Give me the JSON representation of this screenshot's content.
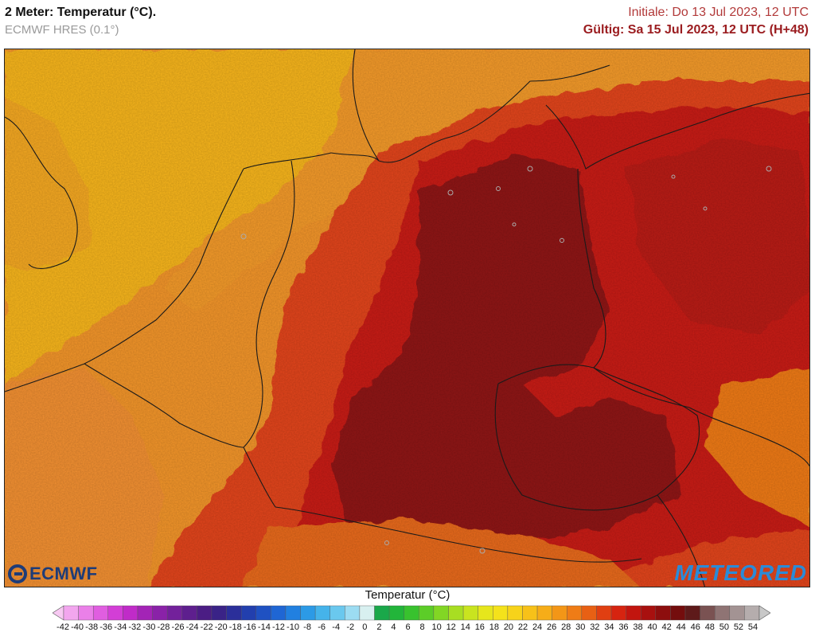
{
  "header": {
    "title": "2 Meter: Temperatur (°C).",
    "model": "ECMWF HRES (0.1°)",
    "initial": "Initiale: Do 13 Jul 2023, 12 UTC",
    "valid": "Gültig: Sa 15 Jul 2023, 12 UTC (H+48)"
  },
  "logos": {
    "left": "ECMWF",
    "right": "METEORED"
  },
  "legend": {
    "title": "Temperatur (°C)",
    "ticks": [
      "-42",
      "-40",
      "-38",
      "-36",
      "-34",
      "-32",
      "-30",
      "-28",
      "-26",
      "-24",
      "-22",
      "-20",
      "-18",
      "-16",
      "-14",
      "-12",
      "-10",
      "-8",
      "-6",
      "-4",
      "-2",
      "0",
      "2",
      "4",
      "6",
      "8",
      "10",
      "12",
      "14",
      "16",
      "18",
      "20",
      "22",
      "24",
      "26",
      "28",
      "30",
      "32",
      "34",
      "36",
      "38",
      "40",
      "42",
      "44",
      "46",
      "48",
      "50",
      "52",
      "54"
    ],
    "colors": [
      "#f7c9f2",
      "#f2a6ee",
      "#ea80e8",
      "#e05ee0",
      "#d33ed6",
      "#c02bc8",
      "#a324b6",
      "#8a22a8",
      "#73219b",
      "#5e1f8e",
      "#4b1d84",
      "#3a2387",
      "#2b2f9a",
      "#223fae",
      "#1f51c2",
      "#1f66d4",
      "#2180e0",
      "#2c9ae6",
      "#45b3ea",
      "#6ac8ee",
      "#9cdcf2",
      "#d8f0f0",
      "#1aa84a",
      "#22b53a",
      "#38c22e",
      "#5ccd28",
      "#82d624",
      "#a8de22",
      "#c9e41f",
      "#e6e61c",
      "#f4e21b",
      "#f7d31a",
      "#f7c119",
      "#f6ad18",
      "#f39617",
      "#ef7c16",
      "#e86014",
      "#e03f12",
      "#d62410",
      "#c2150f",
      "#a8100f",
      "#8d0e0e",
      "#740d0d",
      "#5e1a1a",
      "#7a5252",
      "#8f7474",
      "#a39393",
      "#b5adad",
      "#c8c8c8"
    ],
    "highlight_colors": {
      "cool_sea": "#f7b51c",
      "warm_coast": "#f2952a",
      "hot": "#e2451f",
      "very_hot": "#c81c14",
      "extreme": "#8f1515"
    }
  }
}
